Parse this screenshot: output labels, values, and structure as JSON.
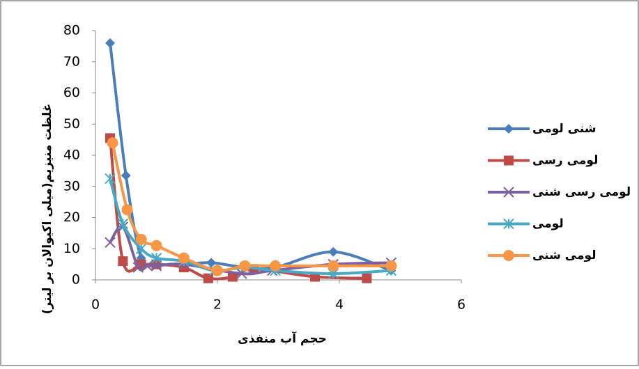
{
  "chart_data": {
    "type": "line",
    "xlabel": "حجم آب منفذی",
    "ylabel": "غلظت منیزیم(میلی اکیوالان بر لیتر)",
    "xlim": [
      0,
      6
    ],
    "xticks": [
      0,
      2,
      4,
      6
    ],
    "ylim": [
      0,
      80
    ],
    "yticks": [
      0,
      10,
      20,
      30,
      40,
      50,
      60,
      70,
      80
    ],
    "legend": "right",
    "smooth": true,
    "series": [
      {
        "name": "شنی لومی",
        "color": "#4a7ebb",
        "marker": "diamond",
        "x": [
          0.24,
          0.5,
          0.75,
          1,
          1.45,
          1.9,
          2.45,
          2.95,
          3.9,
          4.85
        ],
        "values": [
          76,
          33.5,
          7,
          5,
          5,
          5.5,
          4,
          4,
          9,
          3
        ]
      },
      {
        "name": "لومی رسی",
        "color": "#be4b48",
        "marker": "square",
        "x": [
          0.24,
          0.45,
          0.75,
          1,
          1.45,
          1.85,
          2.25,
          2.6,
          3.6,
          4.45
        ],
        "values": [
          45.5,
          6,
          5,
          5,
          4,
          0.5,
          1,
          3.5,
          1,
          0.5
        ]
      },
      {
        "name": "لومی رسی شنی",
        "color": "#7d60a0",
        "marker": "x",
        "x": [
          0.24,
          0.45,
          0.7,
          0.85,
          1,
          1.45,
          2.4,
          2.9,
          3.9,
          4.85
        ],
        "values": [
          12,
          17,
          4,
          4.5,
          4.5,
          5,
          2,
          3,
          5,
          5.5
        ]
      },
      {
        "name": "لومی",
        "color": "#46aac5",
        "marker": "star",
        "x": [
          0.24,
          0.45,
          0.75,
          1,
          1.45,
          1.95,
          2.45,
          2.95,
          3.9,
          4.85
        ],
        "values": [
          32.5,
          18,
          10,
          7,
          6,
          3,
          4,
          3,
          2,
          3
        ]
      },
      {
        "name": "لومی شنی",
        "color": "#f79646",
        "marker": "circle",
        "x": [
          0.28,
          0.52,
          0.75,
          1,
          1.45,
          2,
          2.45,
          2.95,
          3.9,
          4.85
        ],
        "values": [
          44,
          22.5,
          13,
          11,
          7,
          3,
          4.5,
          4.5,
          4.5,
          4.5
        ]
      }
    ]
  }
}
